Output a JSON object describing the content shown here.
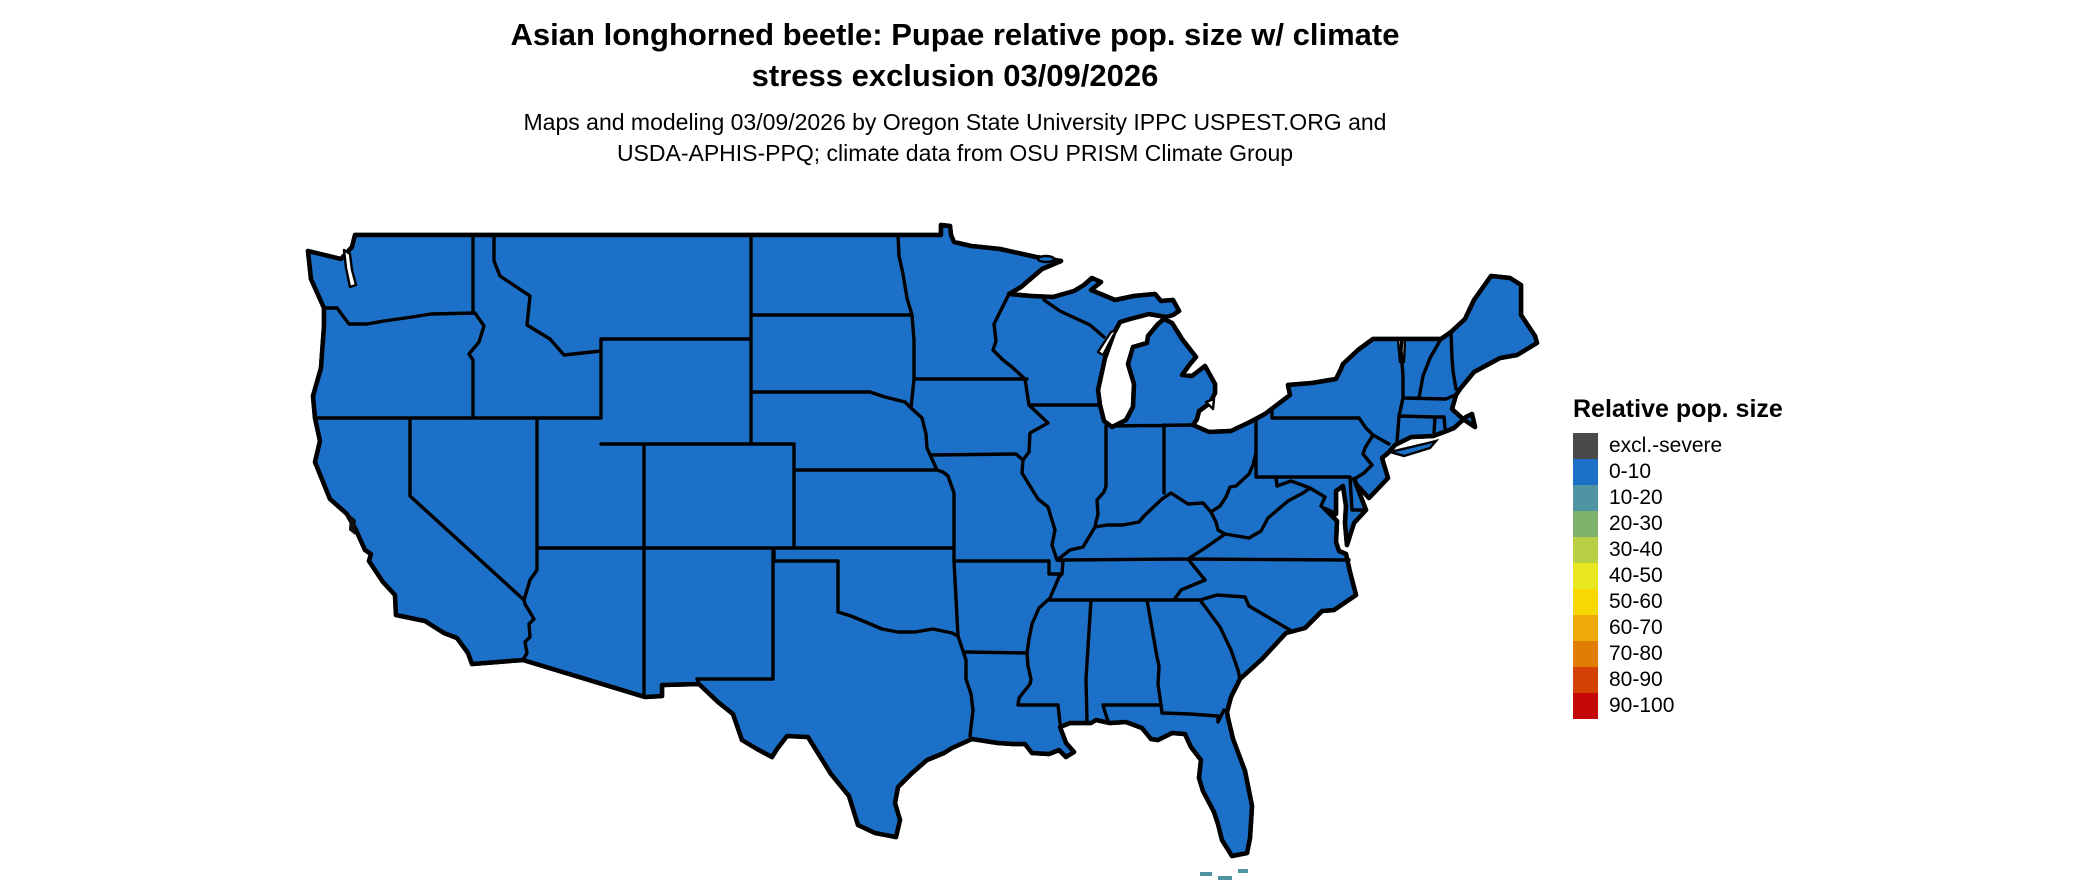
{
  "title": {
    "line1": "Asian longhorned beetle: Pupae relative pop. size w/ climate",
    "line2": "stress exclusion 03/09/2026"
  },
  "subtitle": {
    "line1": "Maps and modeling 03/09/2026 by Oregon State University IPPC USPEST.ORG and",
    "line2": "USDA-APHIS-PPQ; climate data from OSU PRISM Climate Group"
  },
  "legend": {
    "title": "Relative pop. size",
    "items": [
      {
        "label": "excl.-severe",
        "color": "#4a4a4a"
      },
      {
        "label": "0-10",
        "color": "#1d70c8"
      },
      {
        "label": "10-20",
        "color": "#4e94a3"
      },
      {
        "label": "20-30",
        "color": "#7cb26a"
      },
      {
        "label": "30-40",
        "color": "#b9cf44"
      },
      {
        "label": "40-50",
        "color": "#e8e722"
      },
      {
        "label": "50-60",
        "color": "#f7d802"
      },
      {
        "label": "60-70",
        "color": "#efaa08"
      },
      {
        "label": "70-80",
        "color": "#e17c04"
      },
      {
        "label": "80-90",
        "color": "#d44104"
      },
      {
        "label": "90-100",
        "color": "#c50909"
      }
    ]
  },
  "map": {
    "region_border_color": "#000000",
    "background_color": "#ffffff",
    "base_class_label": "0-10"
  }
}
